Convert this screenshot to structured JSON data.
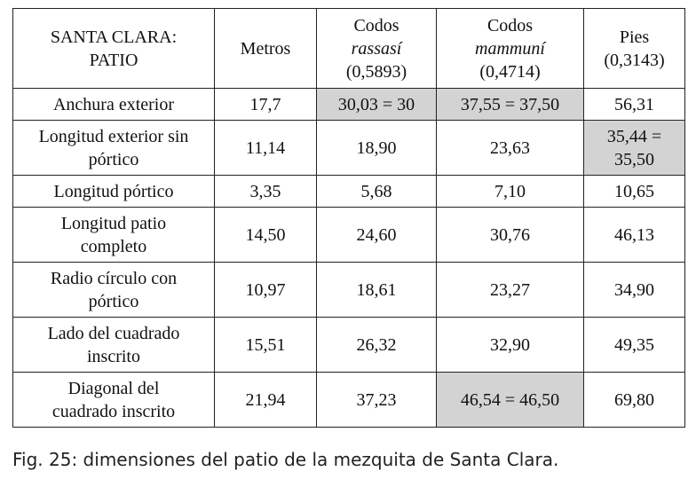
{
  "table": {
    "header": {
      "title_line1": "SANTA CLARA:",
      "title_line2": "PATIO",
      "metros": "Metros",
      "codos_rassasi_line1": "Codos",
      "codos_rassasi_line2": "rassasí",
      "codos_rassasi_line3": "(0,5893)",
      "codos_mammuni_line1": "Codos",
      "codos_mammuni_line2": "mammuní",
      "codos_mammuni_line3": "(0,4714)",
      "pies_line1": "Pies",
      "pies_line2": "(0,3143)"
    },
    "rows": [
      {
        "label_lines": [
          "Anchura exterior"
        ],
        "metros": "17,7",
        "rassasi": "30,03 = 30",
        "mammuni": "37,55 = 37,50",
        "pies_lines": [
          "56,31"
        ]
      },
      {
        "label_lines": [
          "Longitud exterior sin",
          "pórtico"
        ],
        "metros": "11,14",
        "rassasi": "18,90",
        "mammuni": "23,63",
        "pies_lines": [
          "35,44 =",
          "35,50"
        ]
      },
      {
        "label_lines": [
          "Longitud pórtico"
        ],
        "metros": "3,35",
        "rassasi": "5,68",
        "mammuni": "7,10",
        "pies_lines": [
          "10,65"
        ]
      },
      {
        "label_lines": [
          "Longitud patio",
          "completo"
        ],
        "metros": "14,50",
        "rassasi": "24,60",
        "mammuni": "30,76",
        "pies_lines": [
          "46,13"
        ]
      },
      {
        "label_lines": [
          "Radio círculo con",
          "pórtico"
        ],
        "metros": "10,97",
        "rassasi": "18,61",
        "mammuni": "23,27",
        "pies_lines": [
          "34,90"
        ]
      },
      {
        "label_lines": [
          "Lado del cuadrado",
          "inscrito"
        ],
        "metros": "15,51",
        "rassasi": "26,32",
        "mammuni": "32,90",
        "pies_lines": [
          "49,35"
        ]
      },
      {
        "label_lines": [
          "Diagonal del",
          "cuadrado inscrito"
        ],
        "metros": "21,94",
        "rassasi": "37,23",
        "mammuni": "46,54 = 46,50",
        "pies_lines": [
          "69,80"
        ]
      }
    ],
    "highlight_color": "#d3d3d3"
  },
  "caption": "Fig. 25: dimensiones del patio de la mezquita de Santa Clara."
}
